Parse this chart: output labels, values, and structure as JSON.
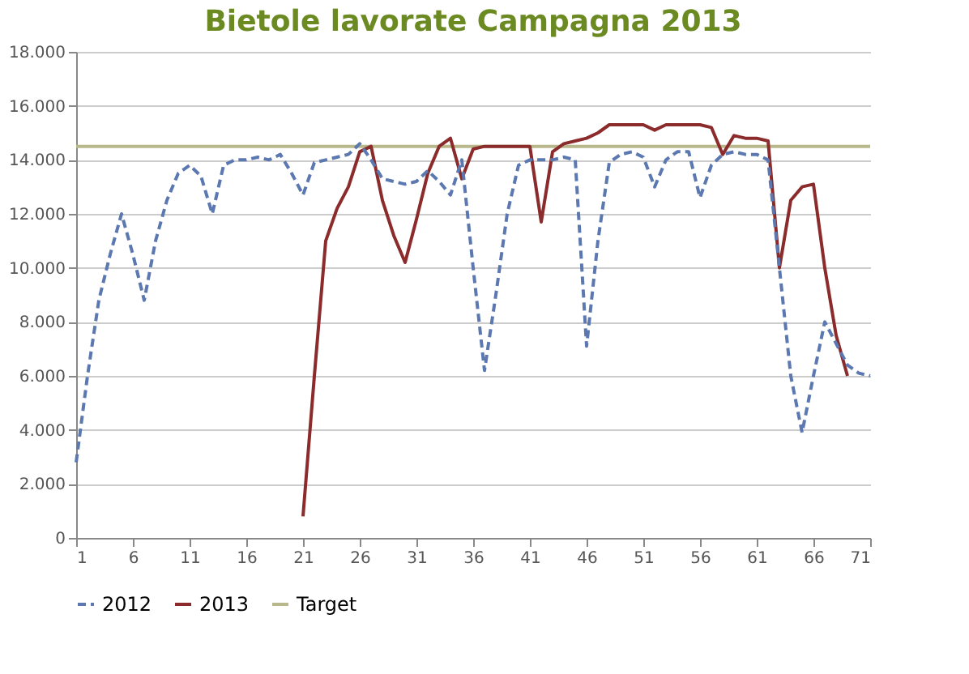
{
  "chart_data": {
    "type": "line",
    "title": "Bietole lavorate Campagna 2013",
    "xlim": [
      1,
      71
    ],
    "xticks": [
      1,
      6,
      11,
      16,
      21,
      26,
      31,
      36,
      41,
      46,
      51,
      56,
      61,
      66,
      71
    ],
    "ylim": [
      0,
      18000
    ],
    "yticks": [
      {
        "value": 0,
        "label": "0"
      },
      {
        "value": 2000,
        "label": "2.000"
      },
      {
        "value": 4000,
        "label": "4.000"
      },
      {
        "value": 6000,
        "label": "6.000"
      },
      {
        "value": 8000,
        "label": "8.000"
      },
      {
        "value": 10000,
        "label": "10.000"
      },
      {
        "value": 12000,
        "label": "12.000"
      },
      {
        "value": 14000,
        "label": "14.000"
      },
      {
        "value": 16000,
        "label": "16.000"
      },
      {
        "value": 18000,
        "label": "18.000"
      }
    ],
    "grid": "y",
    "legend": "bottom",
    "marker": "none",
    "series": [
      {
        "name": "2012",
        "color": "#5b78b0",
        "line_style": "dashed",
        "x": [
          1,
          2,
          3,
          4,
          5,
          6,
          7,
          8,
          9,
          10,
          11,
          12,
          13,
          14,
          15,
          16,
          17,
          18,
          19,
          20,
          21,
          22,
          23,
          24,
          25,
          26,
          27,
          28,
          29,
          30,
          31,
          32,
          33,
          34,
          35,
          36,
          37,
          38,
          39,
          40,
          41,
          42,
          43,
          44,
          45,
          46,
          47,
          48,
          49,
          50,
          51,
          52,
          53,
          54,
          55,
          56,
          57,
          58,
          59,
          60,
          61,
          62,
          63,
          64,
          65,
          66,
          67,
          68,
          69,
          70,
          71
        ],
        "values": [
          2800,
          6000,
          8800,
          10500,
          12000,
          10500,
          8800,
          11000,
          12500,
          13500,
          13800,
          13400,
          12000,
          13800,
          14000,
          14000,
          14100,
          14000,
          14200,
          13500,
          12700,
          13900,
          14000,
          14100,
          14200,
          14600,
          14000,
          13300,
          13200,
          13100,
          13200,
          13600,
          13200,
          12700,
          14000,
          10000,
          6200,
          9000,
          12000,
          13800,
          14000,
          14000,
          14000,
          14100,
          14000,
          7100,
          11000,
          13900,
          14200,
          14300,
          14100,
          13000,
          14000,
          14300,
          14300,
          12600,
          13800,
          14200,
          14300,
          14200,
          14200,
          14000,
          10000,
          6000,
          3900,
          6000,
          8000,
          7200,
          6400,
          6100,
          6000
        ]
      },
      {
        "name": "2013",
        "color": "#8b2b2b",
        "line_style": "solid",
        "x": [
          21,
          22,
          23,
          24,
          25,
          26,
          27,
          28,
          29,
          30,
          31,
          32,
          33,
          34,
          35,
          36,
          37,
          38,
          39,
          40,
          41,
          42,
          43,
          44,
          45,
          46,
          47,
          48,
          49,
          50,
          51,
          52,
          53,
          54,
          55,
          56,
          57,
          58,
          59,
          60,
          61,
          62,
          63,
          64,
          65,
          66,
          67,
          68,
          69
        ],
        "values": [
          800,
          6000,
          11000,
          12200,
          13000,
          14300,
          14500,
          12500,
          11200,
          10200,
          11800,
          13500,
          14500,
          14800,
          13300,
          14400,
          14500,
          14500,
          14500,
          14500,
          14500,
          11700,
          14300,
          14600,
          14700,
          14800,
          15000,
          15300,
          15300,
          15300,
          15300,
          15100,
          15300,
          15300,
          15300,
          15300,
          15200,
          14200,
          14900,
          14800,
          14800,
          14700,
          10000,
          12500,
          13000,
          13100,
          10000,
          7500,
          6000
        ]
      },
      {
        "name": "Target",
        "color": "#b8b88c",
        "line_style": "solid",
        "x": [
          1,
          71
        ],
        "values": [
          14500,
          14500
        ]
      }
    ]
  }
}
